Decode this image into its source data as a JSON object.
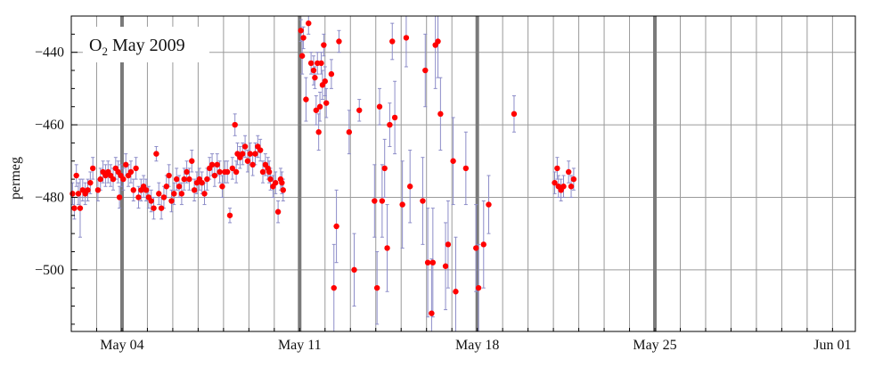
{
  "chart_data": {
    "type": "scatter",
    "title_main": "O",
    "title_sub": "2",
    "title_rest": " May 2009",
    "ylabel": "permeg",
    "xlabel": "",
    "x_unit": "day offset from 2009-05-02",
    "xlim": [
      0,
      30.9
    ],
    "ylim": [
      -517,
      -430
    ],
    "x_ticks": [
      {
        "label": "May 04",
        "x": 2.0
      },
      {
        "label": "May 11",
        "x": 9.0
      },
      {
        "label": "May 18",
        "x": 16.0
      },
      {
        "label": "May 25",
        "x": 23.0
      },
      {
        "label": "Jun 01",
        "x": 30.0
      }
    ],
    "y_ticks": [
      {
        "label": "−440",
        "y": -440
      },
      {
        "label": "−460",
        "y": -460
      },
      {
        "label": "−480",
        "y": -480
      },
      {
        "label": "−500",
        "y": -500
      }
    ],
    "thick_lines_x": [
      2.0,
      9.0,
      16.0,
      23.0
    ],
    "grid": true,
    "colors": {
      "point": "#ff0000",
      "errorbar": "#8c8cc8",
      "grid": "#9a9a9a",
      "thick": "#7a7a7a"
    },
    "series": [
      {
        "points": [
          [
            0.05,
            -479,
            3
          ],
          [
            0.12,
            -483,
            3
          ],
          [
            0.2,
            -474,
            3
          ],
          [
            0.28,
            -479,
            3
          ],
          [
            0.35,
            -483,
            8
          ],
          [
            0.45,
            -478,
            3
          ],
          [
            0.55,
            -479,
            3
          ],
          [
            0.65,
            -478,
            3
          ],
          [
            0.75,
            -476,
            3
          ],
          [
            0.85,
            -472,
            3
          ],
          [
            1.05,
            -478,
            3
          ],
          [
            1.15,
            -475,
            3
          ],
          [
            1.25,
            -473,
            3
          ],
          [
            1.35,
            -474,
            3
          ],
          [
            1.45,
            -473,
            3
          ],
          [
            1.55,
            -474,
            3
          ],
          [
            1.65,
            -475,
            3
          ],
          [
            1.75,
            -472,
            3
          ],
          [
            1.85,
            -473,
            3
          ],
          [
            1.9,
            -480,
            3
          ],
          [
            1.95,
            -474,
            3
          ],
          [
            2.05,
            -475,
            3
          ],
          [
            2.15,
            -471,
            3
          ],
          [
            2.25,
            -474,
            3
          ],
          [
            2.35,
            -473,
            3
          ],
          [
            2.45,
            -478,
            3
          ],
          [
            2.55,
            -472,
            3
          ],
          [
            2.65,
            -480,
            3
          ],
          [
            2.75,
            -478,
            3
          ],
          [
            2.85,
            -477,
            3
          ],
          [
            2.95,
            -478,
            3
          ],
          [
            3.05,
            -480,
            3
          ],
          [
            3.15,
            -481,
            3
          ],
          [
            3.25,
            -483,
            3
          ],
          [
            3.35,
            -468,
            2
          ],
          [
            3.45,
            -479,
            3
          ],
          [
            3.55,
            -483,
            3
          ],
          [
            3.65,
            -480,
            3
          ],
          [
            3.75,
            -477,
            3
          ],
          [
            3.85,
            -474,
            3
          ],
          [
            3.95,
            -481,
            3
          ],
          [
            4.05,
            -479,
            3
          ],
          [
            4.15,
            -475,
            3
          ],
          [
            4.25,
            -477,
            3
          ],
          [
            4.35,
            -479,
            3
          ],
          [
            4.45,
            -475,
            3
          ],
          [
            4.55,
            -473,
            3
          ],
          [
            4.65,
            -475,
            3
          ],
          [
            4.75,
            -470,
            3
          ],
          [
            4.85,
            -478,
            3
          ],
          [
            4.95,
            -476,
            3
          ],
          [
            5.05,
            -475,
            3
          ],
          [
            5.15,
            -476,
            3
          ],
          [
            5.25,
            -479,
            3
          ],
          [
            5.35,
            -475,
            3
          ],
          [
            5.45,
            -472,
            3
          ],
          [
            5.55,
            -471,
            3
          ],
          [
            5.65,
            -474,
            3
          ],
          [
            5.75,
            -471,
            3
          ],
          [
            5.85,
            -473,
            3
          ],
          [
            5.95,
            -477,
            3
          ],
          [
            6.05,
            -473,
            3
          ],
          [
            6.15,
            -473,
            3
          ],
          [
            6.25,
            -485,
            2
          ],
          [
            6.35,
            -472,
            3
          ],
          [
            6.45,
            -460,
            3
          ],
          [
            6.5,
            -473,
            3
          ],
          [
            6.55,
            -468,
            3
          ],
          [
            6.65,
            -469,
            3
          ],
          [
            6.75,
            -468,
            3
          ],
          [
            6.85,
            -466,
            3
          ],
          [
            6.95,
            -470,
            3
          ],
          [
            7.05,
            -468,
            3
          ],
          [
            7.15,
            -471,
            3
          ],
          [
            7.25,
            -468,
            3
          ],
          [
            7.35,
            -466,
            3
          ],
          [
            7.45,
            -467,
            3
          ],
          [
            7.55,
            -473,
            3
          ],
          [
            7.65,
            -471,
            3
          ],
          [
            7.75,
            -472,
            3
          ],
          [
            7.8,
            -473,
            3
          ],
          [
            7.85,
            -475,
            3
          ],
          [
            7.95,
            -477,
            3
          ],
          [
            8.05,
            -476,
            3
          ],
          [
            8.15,
            -484,
            3
          ],
          [
            8.25,
            -475,
            3
          ],
          [
            8.3,
            -476,
            3
          ],
          [
            8.35,
            -478,
            3
          ],
          [
            9.05,
            -434,
            3
          ],
          [
            9.1,
            -441,
            5
          ],
          [
            9.15,
            -436,
            3
          ],
          [
            9.25,
            -453,
            6
          ],
          [
            9.35,
            -432,
            3
          ],
          [
            9.45,
            -443,
            3
          ],
          [
            9.55,
            -445,
            4
          ],
          [
            9.6,
            -447,
            3
          ],
          [
            9.65,
            -456,
            4
          ],
          [
            9.7,
            -443,
            3
          ],
          [
            9.75,
            -462,
            5
          ],
          [
            9.8,
            -455,
            4
          ],
          [
            9.85,
            -443,
            3
          ],
          [
            9.9,
            -449,
            4
          ],
          [
            9.95,
            -438,
            3
          ],
          [
            10.0,
            -448,
            4
          ],
          [
            10.05,
            -454,
            4
          ],
          [
            10.25,
            -446,
            4
          ],
          [
            10.35,
            -505,
            12
          ],
          [
            10.45,
            -488,
            10
          ],
          [
            10.55,
            -437,
            3
          ],
          [
            10.95,
            -462,
            6
          ],
          [
            11.15,
            -500,
            10
          ],
          [
            11.35,
            -456,
            3
          ],
          [
            11.95,
            -481,
            10
          ],
          [
            12.05,
            -505,
            10
          ],
          [
            12.15,
            -455,
            5
          ],
          [
            12.25,
            -481,
            10
          ],
          [
            12.35,
            -472,
            8
          ],
          [
            12.45,
            -494,
            12
          ],
          [
            12.55,
            -460,
            6
          ],
          [
            12.65,
            -437,
            5
          ],
          [
            12.75,
            -458,
            10
          ],
          [
            13.05,
            -482,
            12
          ],
          [
            13.2,
            -436,
            8
          ],
          [
            13.35,
            -477,
            10
          ],
          [
            13.85,
            -481,
            12
          ],
          [
            13.95,
            -445,
            10
          ],
          [
            14.05,
            -498,
            15
          ],
          [
            14.2,
            -512,
            15
          ],
          [
            14.25,
            -498,
            15
          ],
          [
            14.35,
            -438,
            12
          ],
          [
            14.45,
            -437,
            10
          ],
          [
            14.55,
            -457,
            10
          ],
          [
            14.75,
            -499,
            12
          ],
          [
            14.85,
            -493,
            12
          ],
          [
            15.05,
            -470,
            12
          ],
          [
            15.15,
            -506,
            15
          ],
          [
            15.55,
            -472,
            10
          ],
          [
            15.95,
            -494,
            12
          ],
          [
            16.05,
            -505,
            12
          ],
          [
            16.25,
            -493,
            12
          ],
          [
            16.45,
            -482,
            8
          ],
          [
            17.45,
            -457,
            5
          ],
          [
            19.05,
            -476,
            3
          ],
          [
            19.15,
            -472,
            3
          ],
          [
            19.2,
            -477,
            3
          ],
          [
            19.3,
            -478,
            3
          ],
          [
            19.4,
            -477,
            3
          ],
          [
            19.6,
            -473,
            3
          ],
          [
            19.7,
            -477,
            3
          ],
          [
            19.8,
            -475,
            3
          ]
        ]
      }
    ]
  }
}
